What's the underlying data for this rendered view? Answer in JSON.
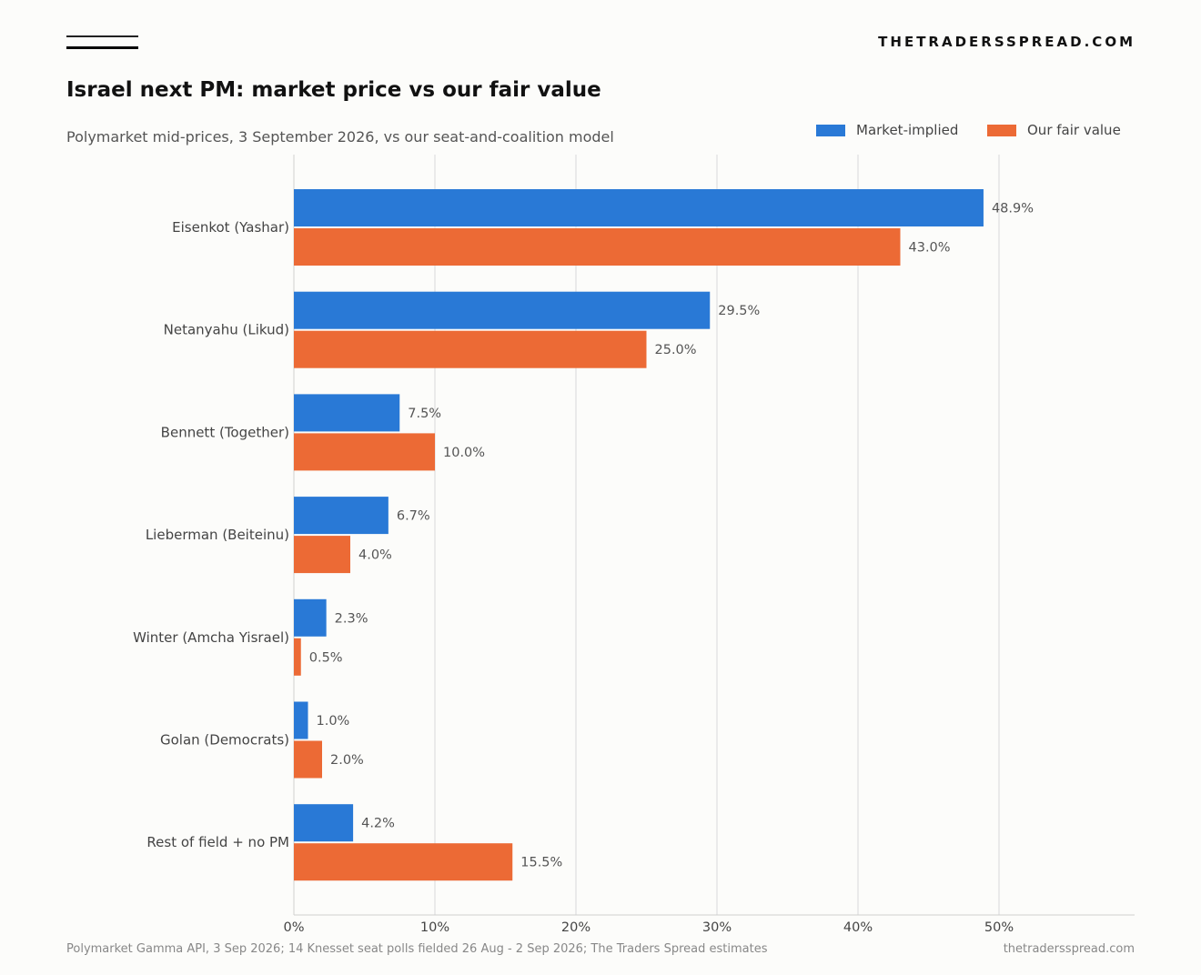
{
  "header": {
    "site_name": "THETRADERSSPREAD.COM",
    "brand_icon": "double-line-logo"
  },
  "footer": {
    "source": "Polymarket Gamma API, 3 Sep 2026; 14 Knesset seat polls fielded 26 Aug - 2 Sep 2026; The Traders Spread estimates",
    "site": "thetradersspread.com"
  },
  "chart_data": {
    "type": "bar",
    "orientation": "horizontal",
    "title": "Israel next PM: market price vs our fair value",
    "subtitle": "Polymarket mid-prices, 3 September 2026, vs our seat-and-coalition model",
    "xlabel": "",
    "ylabel": "",
    "categories": [
      "Eisenkot (Yashar)",
      "Netanyahu (Likud)",
      "Bennett (Together)",
      "Lieberman (Beiteinu)",
      "Winter (Amcha Yisrael)",
      "Golan (Democrats)",
      "Rest of field + no PM"
    ],
    "series": [
      {
        "name": "Market-implied",
        "color": "#2979d6",
        "values": [
          48.9,
          29.5,
          7.5,
          6.7,
          2.3,
          1.0,
          4.2
        ]
      },
      {
        "name": "Our fair value",
        "color": "#ec6a35",
        "values": [
          43.0,
          25.0,
          10.0,
          4.0,
          0.5,
          2.0,
          15.5
        ]
      }
    ],
    "xlim": [
      0,
      59.6
    ],
    "xticks": [
      0,
      10,
      20,
      30,
      40,
      50
    ],
    "xtick_labels": [
      "0%",
      "10%",
      "20%",
      "30%",
      "40%",
      "50%"
    ],
    "value_labels": [
      [
        "48.9%",
        "29.5%",
        "7.5%",
        "6.7%",
        "2.3%",
        "1.0%",
        "4.2%"
      ],
      [
        "43.0%",
        "25.0%",
        "10.0%",
        "4.0%",
        "0.5%",
        "2.0%",
        "15.5%"
      ]
    ],
    "grid": "vertical",
    "legend_position": "top-right"
  }
}
